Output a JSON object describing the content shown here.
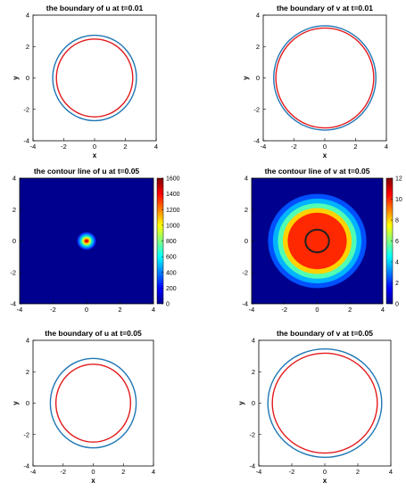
{
  "figure": {
    "layout": "3 rows x 2 columns",
    "colors": {
      "outer_boundary": "#1f77b4",
      "inner_boundary": "#e31a1c",
      "axes": "#000000",
      "contour_ring": "#222222"
    }
  },
  "chart_data": [
    {
      "type": "line",
      "title": "the boundary of u at t=0.01",
      "xlabel": "x",
      "ylabel": "y",
      "xlim": [
        -4,
        4
      ],
      "ylim": [
        -4,
        4
      ],
      "x_ticks": [
        "-4",
        "-2",
        "0",
        "2",
        "4"
      ],
      "y_ticks": [
        "-4",
        "-2",
        "0",
        "2",
        "4"
      ],
      "series": [
        {
          "shape": "circle",
          "center": [
            0,
            0
          ],
          "radius": 2.72,
          "color": "#1f77b4"
        },
        {
          "shape": "circle",
          "center": [
            0,
            0
          ],
          "radius": 2.48,
          "color": "#e31a1c"
        }
      ]
    },
    {
      "type": "line",
      "title": "the boundary of v at t=0.01",
      "xlabel": "x",
      "ylabel": "y",
      "xlim": [
        -4,
        4
      ],
      "ylim": [
        -4,
        4
      ],
      "x_ticks": [
        "-4",
        "-2",
        "0",
        "2",
        "4"
      ],
      "y_ticks": [
        "-4",
        "-2",
        "0",
        "2",
        "4"
      ],
      "series": [
        {
          "shape": "circle",
          "center": [
            0,
            0
          ],
          "radius": 3.32,
          "color": "#1f77b4"
        },
        {
          "shape": "circle",
          "center": [
            0,
            0
          ],
          "radius": 3.18,
          "color": "#e31a1c"
        }
      ]
    },
    {
      "type": "heatmap",
      "title": "the contour line of u at t=0.05",
      "xlim": [
        -4,
        4
      ],
      "ylim": [
        -4,
        4
      ],
      "x_ticks": [
        "-4",
        "-2",
        "0",
        "2",
        "4"
      ],
      "y_ticks": [
        "-4",
        "-2",
        "0",
        "2",
        "4"
      ],
      "colorbar": {
        "min": 0,
        "max": 1600,
        "ticks": [
          "0",
          "200",
          "400",
          "600",
          "800",
          "1000",
          "1200",
          "1400",
          "1600"
        ]
      },
      "levels": [
        {
          "value": 200,
          "radius": 0.55,
          "color": "#0a3cff"
        },
        {
          "value": 400,
          "radius": 0.45,
          "color": "#00a0ff"
        },
        {
          "value": 700,
          "radius": 0.36,
          "color": "#19e6c8"
        },
        {
          "value": 1000,
          "radius": 0.27,
          "color": "#d2ff32"
        },
        {
          "value": 1300,
          "radius": 0.18,
          "color": "#ff9600"
        },
        {
          "value": 1550,
          "radius": 0.1,
          "color": "#e60000"
        }
      ]
    },
    {
      "type": "heatmap",
      "title": "the contour line of v at t=0.05",
      "xlim": [
        -4,
        4
      ],
      "ylim": [
        -4,
        4
      ],
      "x_ticks": [
        "-4",
        "-2",
        "0",
        "2",
        "4"
      ],
      "y_ticks": [
        "-4",
        "-2",
        "0",
        "2",
        "4"
      ],
      "colorbar": {
        "min": 0,
        "max": 12,
        "ticks": [
          "0",
          "2",
          "4",
          "6",
          "8",
          "10",
          "12"
        ]
      },
      "levels": [
        {
          "value": 1,
          "radius": 3.0,
          "color": "#0050ff"
        },
        {
          "value": 3,
          "radius": 2.7,
          "color": "#00b4ff"
        },
        {
          "value": 6,
          "radius": 2.4,
          "color": "#50ffb4"
        },
        {
          "value": 8,
          "radius": 2.1,
          "color": "#ffd200"
        },
        {
          "value": 10,
          "radius": 1.8,
          "color": "#ff2800"
        }
      ],
      "contour_ring": {
        "radius": 0.72,
        "color": "#222222"
      }
    },
    {
      "type": "line",
      "title": "the boundary of u at t=0.05",
      "xlabel": "x",
      "ylabel": "y",
      "xlim": [
        -4,
        4
      ],
      "ylim": [
        -4,
        4
      ],
      "x_ticks": [
        "-4",
        "-2",
        "0",
        "2",
        "4"
      ],
      "y_ticks": [
        "-4",
        "-2",
        "0",
        "2",
        "4"
      ],
      "series": [
        {
          "shape": "circle",
          "center": [
            0,
            0
          ],
          "radius": 2.85,
          "color": "#1f77b4"
        },
        {
          "shape": "circle",
          "center": [
            0,
            0
          ],
          "radius": 2.48,
          "color": "#e31a1c"
        }
      ]
    },
    {
      "type": "line",
      "title": "the boundary of v at t=0.05",
      "xlabel": "x",
      "ylabel": "y",
      "xlim": [
        -4,
        4
      ],
      "ylim": [
        -4,
        4
      ],
      "x_ticks": [
        "-4",
        "-2",
        "0",
        "2",
        "4"
      ],
      "y_ticks": [
        "-4",
        "-2",
        "0",
        "2",
        "4"
      ],
      "series": [
        {
          "shape": "circle",
          "center": [
            0,
            0
          ],
          "radius": 3.45,
          "color": "#1f77b4"
        },
        {
          "shape": "circle",
          "center": [
            0,
            0
          ],
          "radius": 3.18,
          "color": "#e31a1c"
        }
      ]
    }
  ]
}
